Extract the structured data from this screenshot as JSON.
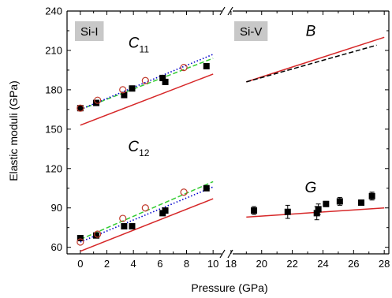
{
  "chart_data": {
    "type": "scatter",
    "xlabel": "Pressure (GPa)",
    "ylabel": "Elastic moduli (GPa)",
    "ylim": [
      55,
      240
    ],
    "yticks": [
      "60",
      "90",
      "120",
      "150",
      "180",
      "210",
      "240"
    ],
    "yticks_values": [
      60,
      90,
      120,
      150,
      180,
      210,
      240
    ],
    "panels": [
      {
        "label": "Si-I",
        "xlim": [
          -1,
          11
        ],
        "xticks": [
          "0",
          "2",
          "4",
          "6",
          "8",
          "10"
        ],
        "xticks_values": [
          0,
          2,
          4,
          6,
          8,
          10
        ],
        "annotations": [
          {
            "main": "C",
            "sub": "11",
            "x": 4.4,
            "y": 212
          },
          {
            "main": "C",
            "sub": "12",
            "x": 4.4,
            "y": 133
          }
        ],
        "series": [
          {
            "role": "C11 experiment",
            "marker": "square-filled",
            "color": "#000000",
            "x": [
              0,
              1.2,
              3.3,
              3.9,
              6.2,
              6.4,
              9.5
            ],
            "y": [
              166,
              170,
              176,
              181,
              189,
              186,
              198
            ]
          },
          {
            "role": "C11 open circles",
            "marker": "circle-open",
            "color": "#c0392b",
            "x": [
              0,
              1.3,
              3.2,
              4.9,
              7.8
            ],
            "y": [
              166,
              172,
              180,
              187,
              197
            ]
          },
          {
            "role": "C11 solid line",
            "line": "solid",
            "color": "#d62728",
            "x": [
              0,
              10
            ],
            "y": [
              153,
              192
            ]
          },
          {
            "role": "C11 dashed line",
            "line": "dashed",
            "color": "#33cc33",
            "x": [
              0,
              10
            ],
            "y": [
              165,
              204
            ]
          },
          {
            "role": "C11 dotted line",
            "line": "dotted",
            "color": "#0000cc",
            "x": [
              0,
              10
            ],
            "y": [
              165,
              207
            ]
          },
          {
            "role": "C12 experiment",
            "marker": "square-filled",
            "color": "#000000",
            "x": [
              0,
              1.2,
              3.3,
              3.9,
              6.2,
              6.4,
              9.5
            ],
            "y": [
              67,
              69,
              76,
              76,
              86,
              88,
              105
            ]
          },
          {
            "role": "C12 open circles",
            "marker": "circle-open",
            "color": "#c0392b",
            "x": [
              0,
              1.3,
              3.2,
              4.9,
              7.8
            ],
            "y": [
              64,
              70,
              82,
              90,
              102
            ]
          },
          {
            "role": "C12 solid line",
            "line": "solid",
            "color": "#d62728",
            "x": [
              0,
              10
            ],
            "y": [
              57,
              97
            ]
          },
          {
            "role": "C12 dashed line",
            "line": "dashed",
            "color": "#33cc33",
            "x": [
              0,
              10
            ],
            "y": [
              66,
              110
            ]
          },
          {
            "role": "C12 dotted line",
            "line": "dotted",
            "color": "#0000cc",
            "x": [
              0,
              10
            ],
            "y": [
              64,
              106
            ]
          }
        ]
      },
      {
        "label": "Si-V",
        "xlim": [
          17.8,
          28.3
        ],
        "xticks": [
          "18",
          "20",
          "22",
          "24",
          "26",
          "28"
        ],
        "xticks_values": [
          18,
          20,
          22,
          24,
          26,
          28
        ],
        "annotations": [
          {
            "main": "B",
            "sub": "",
            "x": 23.2,
            "y": 221
          },
          {
            "main": "G",
            "sub": "",
            "x": 23.2,
            "y": 102
          }
        ],
        "series": [
          {
            "role": "B solid line",
            "line": "solid",
            "color": "#d62728",
            "x": [
              19,
              28
            ],
            "y": [
              186,
              220
            ]
          },
          {
            "role": "B dashed line",
            "line": "dashed",
            "color": "#000000",
            "x": [
              19,
              27.5
            ],
            "y": [
              186,
              214
            ]
          },
          {
            "role": "G solid line",
            "line": "solid",
            "color": "#d62728",
            "x": [
              19,
              28
            ],
            "y": [
              83,
              90
            ]
          },
          {
            "role": "G experiment",
            "marker": "square-filled",
            "color": "#000000",
            "x": [
              19.5,
              21.7,
              23.6,
              23.7,
              24.2,
              25.1,
              26.5,
              27.2
            ],
            "y": [
              88,
              87,
              86,
              89,
              93,
              95,
              94,
              99
            ],
            "err": [
              3,
              5,
              5,
              4,
              2,
              3,
              2,
              3
            ]
          }
        ]
      }
    ]
  }
}
